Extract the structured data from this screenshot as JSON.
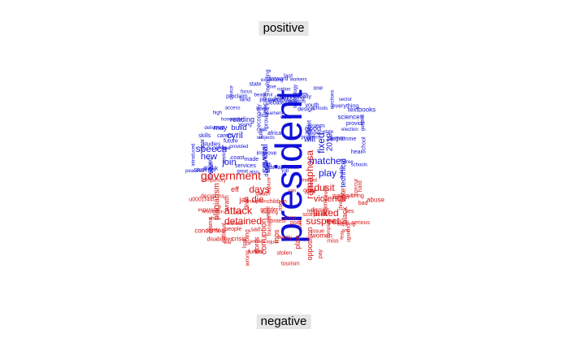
{
  "labels": {
    "positive": "positive",
    "negative": "negative"
  },
  "colors": {
    "positive": "#1010d8",
    "negative": "#d81010"
  },
  "positive_words": [
    "president",
    "speech",
    "join",
    "new",
    "cyril",
    "may",
    "build",
    "reading",
    "good",
    "schools",
    "will",
    "fixed",
    "2019",
    "economy",
    "south",
    "nation",
    "matches",
    "play",
    "technical",
    "textbooks",
    "sciences",
    "focus",
    "working",
    "housing",
    "tablet",
    "leader",
    "education",
    "future",
    "hear",
    "job",
    "progress",
    "intend",
    "improve",
    "child",
    "youth",
    "dear",
    "respect",
    "everything",
    "please",
    "peaceful",
    "access",
    "engaged",
    "premiers",
    "subjects",
    "projects",
    "introduced",
    "beautiful",
    "workbooks",
    "design",
    "gas",
    "africa",
    "ramaphosas",
    "finally",
    "debate",
    "said",
    "high",
    "delivered",
    "coast",
    "land",
    "expanding",
    "great",
    "provinces",
    "also",
    "public",
    "schools",
    "free",
    "elections",
    "skills",
    "device",
    "provide",
    "honorable",
    "general",
    "word",
    "human",
    "technology",
    "made",
    "happy",
    "services",
    "love",
    "last",
    "digital",
    "now",
    "thank",
    "several",
    "programme",
    "proper",
    "early",
    "learners",
    "provided",
    "election",
    "including",
    "address",
    "date",
    "state",
    "one",
    "first",
    "fully",
    "school",
    "proclaim",
    "sector",
    "studies",
    "young",
    "forward",
    "workers",
    "carers",
    "students"
  ],
  "negative_words": [
    "government",
    "days",
    "attack",
    "detained",
    "die",
    "plagiarism",
    "eff",
    "jail",
    "wrath",
    "suspect",
    "linked",
    "violence",
    "dusit",
    "ramaphosa",
    "vote",
    "corruption",
    "going",
    "crisis",
    "words",
    "concerned",
    "mps",
    "plan",
    "opposition",
    "black",
    "women",
    "disabilities",
    "abuse",
    "u0001f44f",
    "revolution",
    "lost",
    "rise",
    "death",
    "miss",
    "concur",
    "ending",
    "plenty",
    "deadly",
    "bring",
    "wrong",
    "gender",
    "malema",
    "funds",
    "missed",
    "national",
    "julie",
    "stolen",
    "serious",
    "clapping",
    "contest",
    "time",
    "three",
    "van",
    "people",
    "even",
    "scorpions",
    "children",
    "curry",
    "poor",
    "zuma",
    "hearing",
    "minister",
    "cant",
    "anc",
    "urgent",
    "uganda",
    "without",
    "joke",
    "disruption",
    "decisions",
    "tourism",
    "based",
    "liquor",
    "compulsory",
    "entities",
    "drama",
    "shut",
    "capture",
    "expensive",
    "complain",
    "fired",
    "dismiss",
    "hot",
    "dead",
    "war",
    "lies",
    "sad",
    "shame",
    "issue",
    "bad",
    "fear",
    "pay",
    "hard",
    "risk"
  ]
}
